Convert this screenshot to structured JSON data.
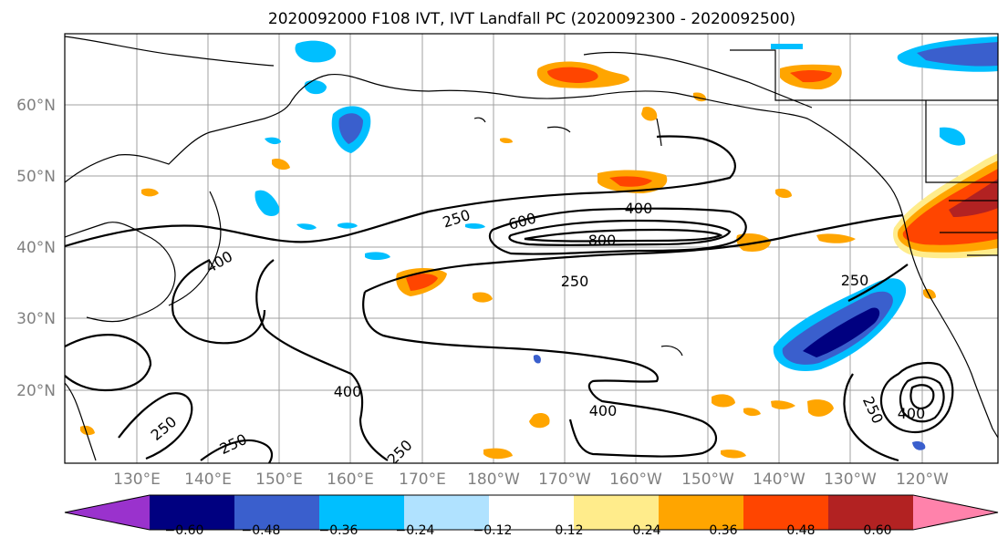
{
  "title": "2020092000 F108 IVT, IVT Landfall PC (2020092300 - 2020092500)",
  "map": {
    "lat_labels": [
      "60°N",
      "50°N",
      "40°N",
      "30°N",
      "20°N"
    ],
    "lon_labels": [
      "130°E",
      "140°E",
      "150°E",
      "160°E",
      "170°E",
      "180°W",
      "170°W",
      "160°W",
      "150°W",
      "140°W",
      "130°W",
      "120°W"
    ],
    "contour_labels": [
      "250",
      "600",
      "400",
      "800",
      "250",
      "400",
      "250",
      "400",
      "250",
      "250",
      "400",
      "250",
      "250",
      "400"
    ],
    "ivt_contour_levels": [
      250,
      400,
      600,
      800
    ]
  },
  "colorbar": {
    "tick_labels": [
      "−0.60",
      "−0.48",
      "−0.36",
      "−0.24",
      "−0.12",
      "0.12",
      "0.24",
      "0.36",
      "0.48",
      "0.60"
    ],
    "colors": [
      "#9a32cd",
      "#000080",
      "#3a5fcd",
      "#00bfff",
      "#b0e2ff",
      "#ffffff",
      "#ffec8b",
      "#ffa500",
      "#ff4500",
      "#b22222",
      "#ff82ab"
    ],
    "extend": "both"
  }
}
